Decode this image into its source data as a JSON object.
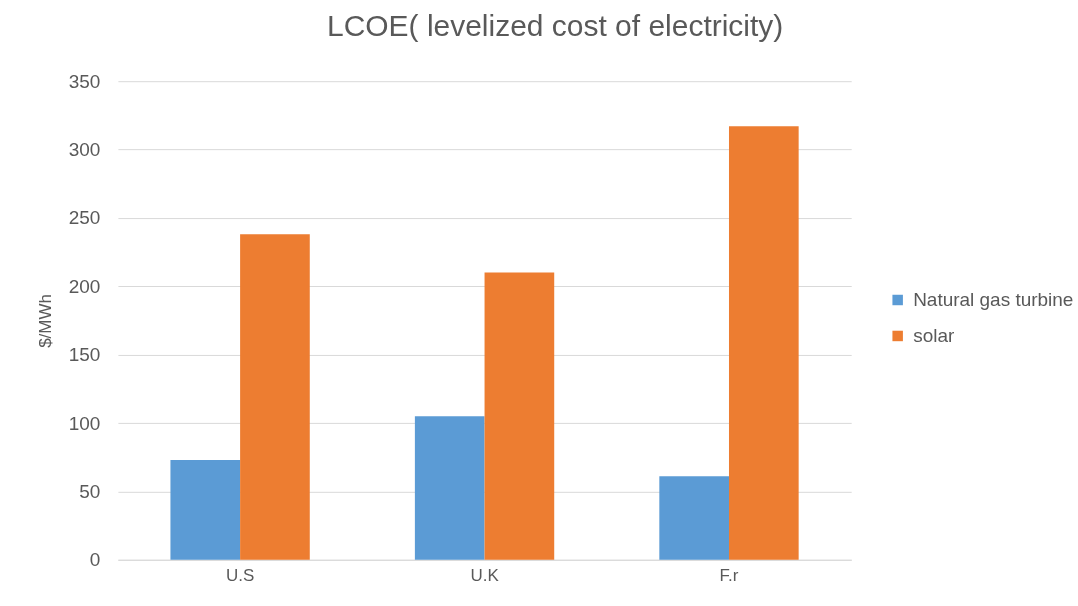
{
  "chart_data": {
    "type": "bar",
    "title": "LCOE( levelized cost of electricity)",
    "ylabel": "$/MWh",
    "categories": [
      "U.S",
      "U.K",
      "F.r"
    ],
    "series": [
      {
        "name": "Natural gas turbine",
        "color": "#5b9bd5",
        "values": [
          73,
          105,
          61
        ]
      },
      {
        "name": "solar",
        "color": "#ed7d31",
        "values": [
          238,
          210,
          317
        ]
      }
    ],
    "ylim": [
      0,
      350
    ],
    "yticks": [
      0,
      50,
      100,
      150,
      200,
      250,
      300,
      350
    ],
    "grid": "y",
    "legend": "right"
  }
}
